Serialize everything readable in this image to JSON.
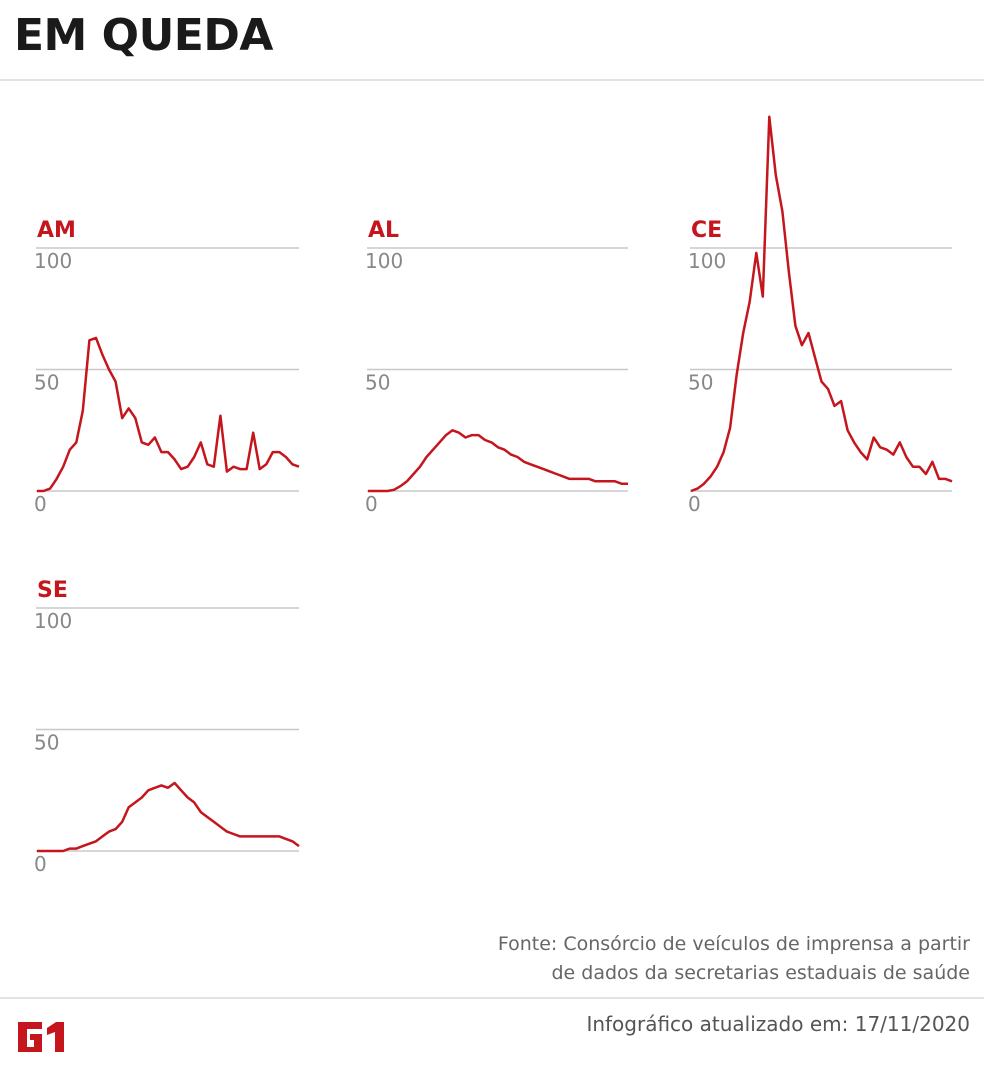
{
  "header": {
    "title": "EM QUEDA"
  },
  "footer": {
    "source_line1": "Fonte: Consórcio de veículos de imprensa a partir",
    "source_line2": "de dados da secretarias estaduais de saúde",
    "updated": "Infográfico atualizado em: 17/11/2020",
    "logo_text": "G1"
  },
  "colors": {
    "line": "#c4161c",
    "label": "#c4161c",
    "grid": "#c8c8c8",
    "tick": "#888888"
  },
  "chart_data": [
    {
      "type": "line",
      "title": "AM",
      "ylim": [
        0,
        100
      ],
      "yticks": [
        "0",
        "50",
        "100"
      ],
      "grid": true,
      "values": [
        0,
        0,
        1,
        5,
        10,
        17,
        20,
        33,
        62,
        63,
        56,
        50,
        45,
        30,
        34,
        30,
        20,
        19,
        22,
        16,
        16,
        13,
        9,
        10,
        14,
        20,
        11,
        10,
        31,
        8,
        10,
        9,
        9,
        24,
        9,
        11,
        16,
        16,
        14,
        11,
        10
      ]
    },
    {
      "type": "line",
      "title": "AL",
      "ylim": [
        0,
        100
      ],
      "yticks": [
        "0",
        "50",
        "100"
      ],
      "grid": true,
      "values": [
        0,
        0,
        0,
        0,
        0.5,
        2,
        4,
        7,
        10,
        14,
        17,
        20,
        23,
        25,
        24,
        22,
        23,
        23,
        21,
        20,
        18,
        17,
        15,
        14,
        12,
        11,
        10,
        9,
        8,
        7,
        6,
        5,
        5,
        5,
        5,
        4,
        4,
        4,
        4,
        3,
        3
      ]
    },
    {
      "type": "line",
      "title": "CE",
      "ylim": [
        0,
        100
      ],
      "yticks": [
        "0",
        "50",
        "100"
      ],
      "grid": true,
      "values": [
        0,
        1,
        3,
        6,
        10,
        16,
        26,
        48,
        65,
        78,
        98,
        80,
        154,
        130,
        115,
        90,
        68,
        60,
        65,
        55,
        45,
        42,
        35,
        37,
        25,
        20,
        16,
        13,
        22,
        18,
        17,
        15,
        20,
        14,
        10,
        10,
        7,
        12,
        5,
        5,
        4
      ]
    },
    {
      "type": "line",
      "title": "SE",
      "ylim": [
        0,
        100
      ],
      "yticks": [
        "0",
        "50",
        "100"
      ],
      "grid": true,
      "values": [
        0,
        0,
        0,
        0,
        0,
        1,
        1,
        2,
        3,
        4,
        6,
        8,
        9,
        12,
        18,
        20,
        22,
        25,
        26,
        27,
        26,
        28,
        25,
        22,
        20,
        16,
        14,
        12,
        10,
        8,
        7,
        6,
        6,
        6,
        6,
        6,
        6,
        6,
        5,
        4,
        2
      ]
    }
  ]
}
